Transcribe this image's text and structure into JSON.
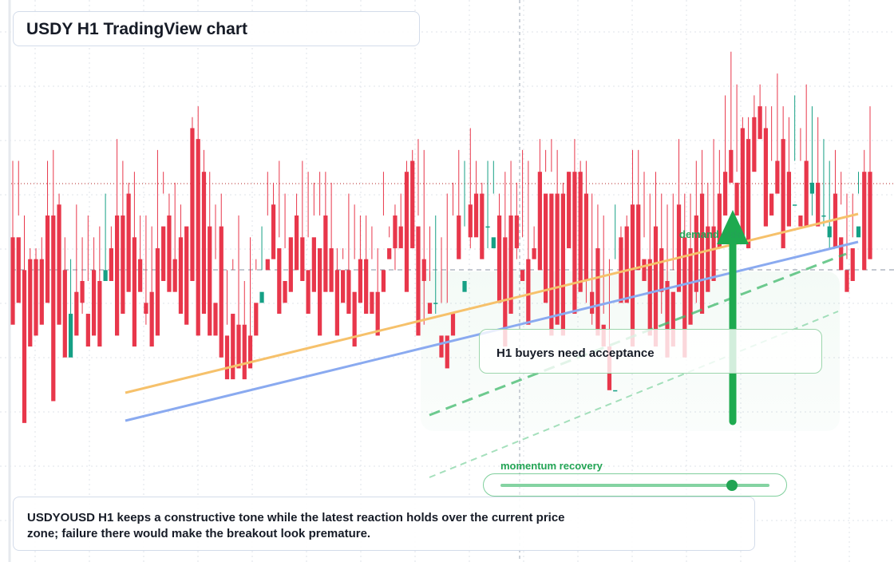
{
  "title": "USDY H1 TradingView chart",
  "note": "USDYOUSD H1 keeps a constructive tone while the latest reaction holds over the current price zone; failure there would make the breakout look premature.",
  "callout": "H1 buyers need acceptance",
  "labels": {
    "momentum": "momentum recovery",
    "demand": "demand side"
  },
  "momentum_level": 0.86,
  "colors": {
    "up": "#16a085",
    "down": "#e8374b",
    "accent_green": "#22a454",
    "trend_orange": "#f6c16b",
    "trend_blue": "#8aaaf0"
  },
  "chart_data": {
    "type": "candlestick",
    "title": "USDY H1 TradingView chart",
    "xlabel": "",
    "ylabel": "",
    "ylim": [
      0,
      100
    ],
    "grid": true,
    "current_price": 73,
    "reference_level": 52,
    "candles": [
      [
        58,
        72,
        46,
        42
      ],
      [
        58,
        72,
        62,
        46
      ],
      [
        52,
        62,
        46,
        24
      ],
      [
        54,
        56,
        52,
        38
      ],
      [
        54,
        56,
        48,
        40
      ],
      [
        54,
        58,
        48,
        42
      ],
      [
        62,
        72,
        54,
        46
      ],
      [
        62,
        74,
        48,
        28
      ],
      [
        64,
        66,
        58,
        42
      ],
      [
        52,
        58,
        52,
        36
      ],
      [
        36,
        54,
        44,
        44
      ],
      [
        48,
        64,
        46,
        40
      ],
      [
        50,
        58,
        44,
        46
      ],
      [
        44,
        62,
        50,
        38
      ],
      [
        52,
        58,
        44,
        40
      ],
      [
        50,
        60,
        48,
        38
      ],
      [
        50,
        66,
        50,
        52
      ],
      [
        56,
        60,
        52,
        50
      ],
      [
        62,
        76,
        58,
        40
      ],
      [
        62,
        72,
        60,
        44
      ],
      [
        66,
        68,
        60,
        48
      ],
      [
        58,
        70,
        54,
        38
      ],
      [
        54,
        62,
        52,
        48
      ],
      [
        46,
        62,
        42,
        44
      ],
      [
        48,
        60,
        48,
        38
      ],
      [
        56,
        74,
        50,
        40
      ],
      [
        60,
        70,
        66,
        50
      ],
      [
        62,
        66,
        56,
        48
      ],
      [
        54,
        68,
        52,
        48
      ],
      [
        58,
        64,
        56,
        44
      ],
      [
        60,
        76,
        76,
        42
      ],
      [
        78,
        80,
        60,
        50
      ],
      [
        76,
        82,
        62,
        40
      ],
      [
        70,
        74,
        58,
        44
      ],
      [
        60,
        70,
        46,
        40
      ],
      [
        46,
        64,
        54,
        40
      ],
      [
        60,
        66,
        60,
        36
      ],
      [
        40,
        52,
        42,
        32
      ],
      [
        44,
        54,
        52,
        32
      ],
      [
        42,
        62,
        40,
        34
      ],
      [
        42,
        50,
        42,
        32
      ],
      [
        40,
        58,
        36,
        34
      ],
      [
        46,
        54,
        52,
        40
      ],
      [
        46,
        60,
        52,
        48
      ],
      [
        54,
        70,
        62,
        52
      ],
      [
        64,
        68,
        58,
        54
      ],
      [
        56,
        72,
        58,
        44
      ],
      [
        50,
        66,
        56,
        46
      ],
      [
        58,
        60,
        60,
        48
      ],
      [
        62,
        66,
        60,
        52
      ],
      [
        58,
        72,
        58,
        50
      ],
      [
        52,
        70,
        58,
        44
      ],
      [
        58,
        68,
        62,
        48
      ],
      [
        56,
        70,
        62,
        40
      ],
      [
        62,
        70,
        60,
        48
      ],
      [
        56,
        68,
        52,
        48
      ],
      [
        52,
        56,
        50,
        40
      ],
      [
        52,
        56,
        54,
        46
      ],
      [
        52,
        66,
        52,
        44
      ],
      [
        48,
        64,
        54,
        38
      ],
      [
        54,
        62,
        48,
        46
      ],
      [
        54,
        62,
        52,
        44
      ],
      [
        48,
        60,
        54,
        44
      ],
      [
        48,
        56,
        48,
        40
      ],
      [
        52,
        70,
        62,
        48
      ],
      [
        56,
        58,
        60,
        54
      ],
      [
        62,
        64,
        52,
        56
      ],
      [
        60,
        66,
        60,
        56
      ],
      [
        70,
        72,
        70,
        48
      ],
      [
        72,
        74,
        58,
        56
      ],
      [
        60,
        76,
        62,
        40
      ],
      [
        54,
        74,
        42,
        50
      ],
      [
        46,
        60,
        50,
        44
      ],
      [
        46,
        62,
        44,
        46
      ],
      [
        40,
        58,
        46,
        36
      ],
      [
        40,
        66,
        46,
        34
      ],
      [
        44,
        68,
        62,
        40
      ],
      [
        62,
        74,
        56,
        54
      ],
      [
        48,
        72,
        60,
        50
      ],
      [
        64,
        78,
        56,
        58
      ],
      [
        66,
        72,
        60,
        58
      ],
      [
        66,
        68,
        62,
        54
      ],
      [
        60,
        72,
        56,
        60
      ],
      [
        56,
        72,
        66,
        58
      ],
      [
        62,
        66,
        52,
        46
      ],
      [
        58,
        70,
        58,
        38
      ],
      [
        62,
        72,
        52,
        44
      ],
      [
        62,
        68,
        54,
        56
      ],
      [
        52,
        74,
        58,
        50
      ],
      [
        54,
        72,
        52,
        42
      ],
      [
        56,
        60,
        56,
        54
      ],
      [
        70,
        76,
        68,
        52
      ],
      [
        66,
        70,
        74,
        46
      ],
      [
        66,
        76,
        70,
        40
      ],
      [
        66,
        74,
        62,
        42
      ],
      [
        66,
        68,
        62,
        40
      ],
      [
        70,
        70,
        68,
        56
      ],
      [
        70,
        76,
        56,
        44
      ],
      [
        70,
        72,
        52,
        48
      ],
      [
        66,
        72,
        46,
        50
      ],
      [
        48,
        66,
        42,
        44
      ],
      [
        56,
        64,
        42,
        40
      ],
      [
        42,
        62,
        44,
        38
      ],
      [
        38,
        54,
        32,
        30
      ],
      [
        30,
        64,
        54,
        30
      ],
      [
        58,
        60,
        58,
        46
      ],
      [
        60,
        62,
        58,
        46
      ],
      [
        64,
        74,
        50,
        38
      ],
      [
        64,
        74,
        60,
        52
      ],
      [
        54,
        70,
        58,
        50
      ],
      [
        54,
        66,
        48,
        40
      ],
      [
        60,
        70,
        44,
        38
      ],
      [
        56,
        66,
        44,
        48
      ],
      [
        50,
        64,
        48,
        36
      ],
      [
        48,
        66,
        52,
        38
      ],
      [
        64,
        76,
        64,
        48
      ],
      [
        58,
        66,
        54,
        36
      ],
      [
        56,
        66,
        54,
        42
      ],
      [
        62,
        72,
        46,
        48
      ],
      [
        66,
        74,
        60,
        44
      ],
      [
        60,
        68,
        54,
        48
      ],
      [
        60,
        76,
        58,
        50
      ],
      [
        66,
        74,
        60,
        56
      ],
      [
        70,
        84,
        64,
        62
      ],
      [
        74,
        92,
        70,
        68
      ],
      [
        68,
        86,
        70,
        62
      ],
      [
        78,
        80,
        76,
        58
      ],
      [
        76,
        80,
        76,
        56
      ],
      [
        80,
        84,
        78,
        70
      ],
      [
        82,
        86,
        82,
        76
      ],
      [
        78,
        82,
        70,
        60
      ],
      [
        66,
        82,
        72,
        62
      ],
      [
        72,
        88,
        68,
        66
      ],
      [
        76,
        82,
        66,
        56
      ],
      [
        70,
        80,
        66,
        60
      ],
      [
        64,
        84,
        72,
        64
      ],
      [
        62,
        78,
        72,
        60
      ],
      [
        72,
        86,
        62,
        60
      ],
      [
        66,
        82,
        62,
        68
      ],
      [
        68,
        80,
        68,
        60
      ],
      [
        62,
        76,
        60,
        62
      ],
      [
        58,
        72,
        56,
        60
      ],
      [
        66,
        74,
        56,
        56
      ],
      [
        58,
        70,
        64,
        52
      ],
      [
        52,
        66,
        54,
        48
      ],
      [
        56,
        66,
        58,
        50
      ],
      [
        58,
        70,
        66,
        60
      ],
      [
        70,
        74,
        66,
        52
      ],
      [
        70,
        82,
        68,
        54
      ]
    ]
  }
}
